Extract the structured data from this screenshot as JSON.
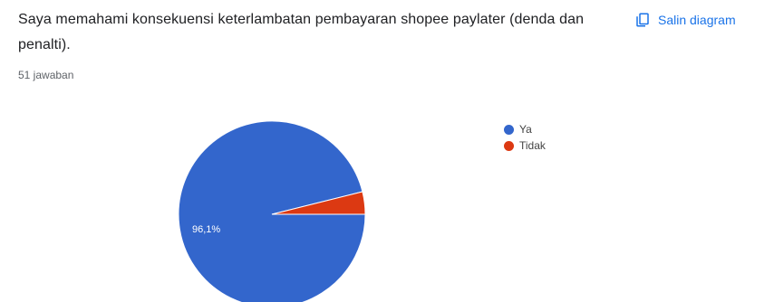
{
  "question": {
    "title": "Saya memahami konsekuensi keterlambatan pembayaran shopee paylater (denda dan penalti).",
    "response_count": "51 jawaban"
  },
  "copy_button": {
    "label": "Salin diagram",
    "icon": "copy-icon"
  },
  "colors": {
    "accent": "#1a73e8",
    "ya": "#3366cc",
    "tidak": "#dc3912"
  },
  "chart_data": {
    "type": "pie",
    "title": "",
    "categories": [
      "Ya",
      "Tidak"
    ],
    "values": [
      96.1,
      3.9
    ],
    "data_labels": [
      "96,1%",
      ""
    ],
    "colors": [
      "#3366cc",
      "#dc3912"
    ],
    "legend_position": "right"
  }
}
